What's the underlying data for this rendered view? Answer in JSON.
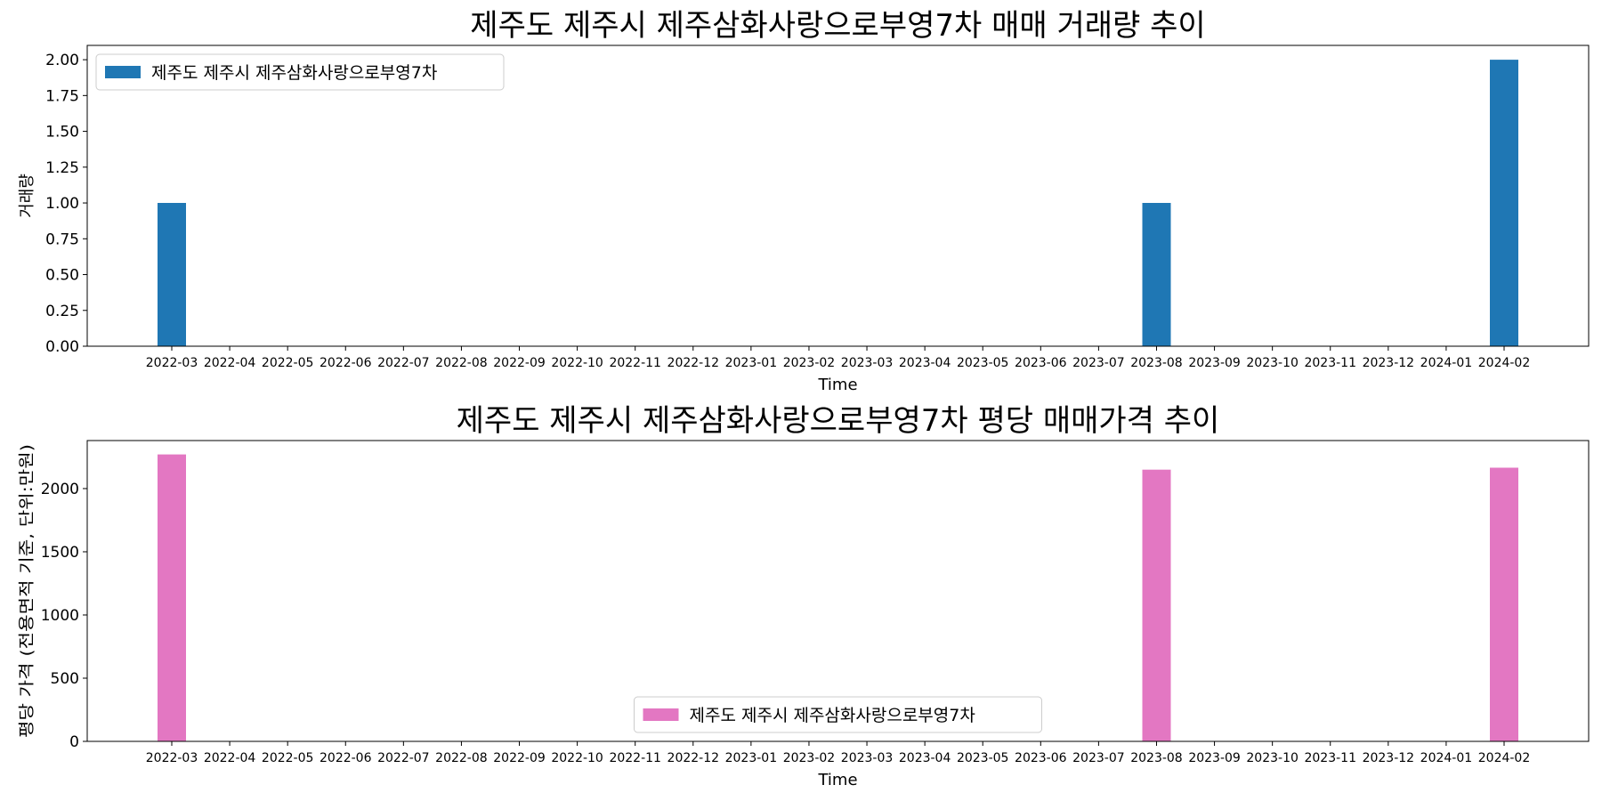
{
  "chart_data": [
    {
      "type": "bar",
      "title": "제주도 제주시 제주삼화사랑으로부영7차 매매 거래량 추이",
      "xlabel": "Time",
      "ylabel": "거래량",
      "categories": [
        "2022-03",
        "2022-04",
        "2022-05",
        "2022-06",
        "2022-07",
        "2022-08",
        "2022-09",
        "2022-10",
        "2022-11",
        "2022-12",
        "2023-01",
        "2023-02",
        "2023-03",
        "2023-04",
        "2023-05",
        "2023-06",
        "2023-07",
        "2023-08",
        "2023-09",
        "2023-10",
        "2023-11",
        "2023-12",
        "2024-01",
        "2024-02"
      ],
      "ylim": [
        0,
        2.1
      ],
      "yticks": [
        0,
        0.25,
        0.5,
        0.75,
        1.0,
        1.25,
        1.5,
        1.75,
        2.0
      ],
      "ytick_labels": [
        "0.00",
        "0.25",
        "0.50",
        "0.75",
        "1.00",
        "1.25",
        "1.50",
        "1.75",
        "2.00"
      ],
      "series": [
        {
          "name": "제주도 제주시 제주삼화사랑으로부영7차",
          "color": "#1f77b4",
          "values": [
            1,
            0,
            0,
            0,
            0,
            0,
            0,
            0,
            0,
            0,
            0,
            0,
            0,
            0,
            0,
            0,
            0,
            1,
            0,
            0,
            0,
            0,
            0,
            2
          ]
        }
      ],
      "legend": "upper-left",
      "grid": false
    },
    {
      "type": "bar",
      "title": "제주도 제주시 제주삼화사랑으로부영7차 평당 매매가격 추이",
      "xlabel": "Time",
      "ylabel": "평당 가격 (전용면적 기준, 단위:만원)",
      "categories": [
        "2022-03",
        "2022-04",
        "2022-05",
        "2022-06",
        "2022-07",
        "2022-08",
        "2022-09",
        "2022-10",
        "2022-11",
        "2022-12",
        "2023-01",
        "2023-02",
        "2023-03",
        "2023-04",
        "2023-05",
        "2023-06",
        "2023-07",
        "2023-08",
        "2023-09",
        "2023-10",
        "2023-11",
        "2023-12",
        "2024-01",
        "2024-02"
      ],
      "ylim": [
        0,
        2380
      ],
      "yticks": [
        0,
        500,
        1000,
        1500,
        2000
      ],
      "ytick_labels": [
        "0",
        "500",
        "1000",
        "1500",
        "2000"
      ],
      "series": [
        {
          "name": "제주도 제주시 제주삼화사랑으로부영7차",
          "color": "#e377c2",
          "values": [
            2270,
            0,
            0,
            0,
            0,
            0,
            0,
            0,
            0,
            0,
            0,
            0,
            0,
            0,
            0,
            0,
            0,
            2150,
            0,
            0,
            0,
            0,
            0,
            2165
          ]
        }
      ],
      "legend": "lower-center",
      "grid": false
    }
  ]
}
